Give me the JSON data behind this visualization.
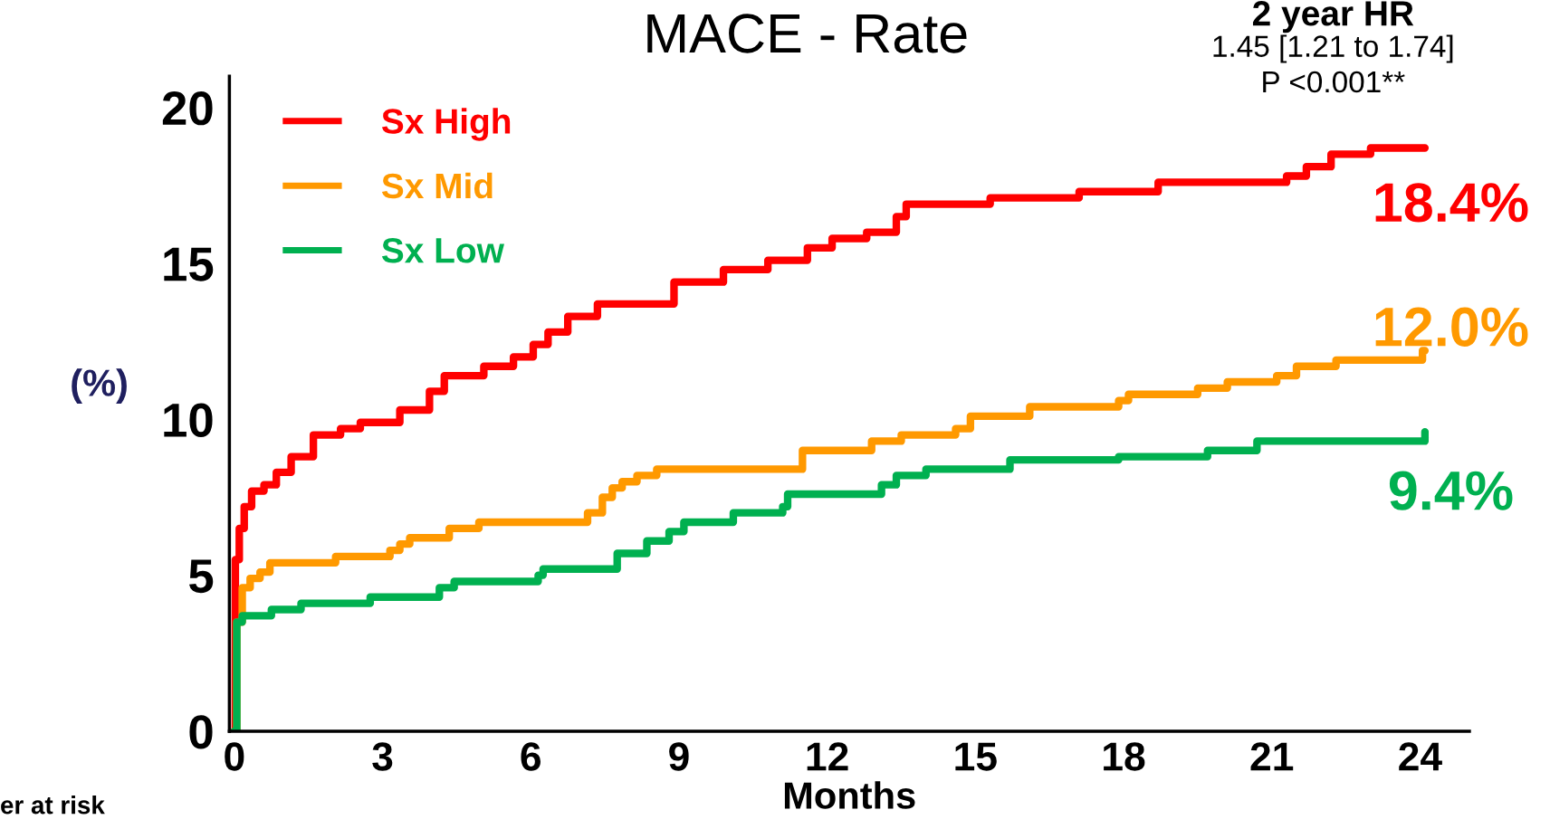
{
  "chart_data": {
    "type": "step",
    "title": "MACE - Rate",
    "xlabel": "Months",
    "ylabel": "(%)",
    "xlim": [
      -0.1,
      25
    ],
    "ylim": [
      0,
      21
    ],
    "xticks": [
      0,
      3,
      6,
      9,
      12,
      15,
      18,
      21,
      24
    ],
    "yticks": [
      0,
      5,
      10,
      15,
      20
    ],
    "grid": false,
    "legend": "top left",
    "line_style": "solid",
    "marker": "none",
    "series": [
      {
        "name": "Sx High",
        "color": "#ff0000",
        "x": [
          0,
          0.02,
          0.1,
          0.2,
          0.35,
          0.6,
          0.85,
          1.15,
          1.6,
          2.15,
          2.55,
          3.35,
          3.95,
          4.25,
          5.05,
          5.65,
          6.05,
          6.35,
          6.75,
          7.35,
          8.9,
          9.9,
          10.8,
          11.6,
          12.1,
          12.8,
          13.4,
          13.6,
          15.3,
          17.1,
          18.7,
          21.3,
          21.7,
          22.2,
          23.0,
          24.1
        ],
        "values": [
          0,
          5.5,
          6.5,
          7.2,
          7.7,
          7.9,
          8.3,
          8.8,
          9.5,
          9.7,
          9.9,
          10.3,
          10.9,
          11.4,
          11.7,
          12.0,
          12.4,
          12.8,
          13.3,
          13.7,
          14.4,
          14.8,
          15.1,
          15.5,
          15.8,
          16.0,
          16.5,
          16.9,
          17.1,
          17.3,
          17.6,
          17.8,
          18.1,
          18.5,
          18.7,
          18.7
        ]
      },
      {
        "name": "Sx Mid",
        "color": "#ff9900",
        "x": [
          0,
          0.05,
          0.16,
          0.32,
          0.52,
          0.72,
          2.05,
          3.15,
          3.35,
          3.55,
          4.35,
          4.95,
          7.15,
          7.45,
          7.65,
          7.85,
          8.15,
          8.55,
          11.5,
          12.9,
          13.5,
          14.6,
          14.9,
          16.1,
          17.9,
          18.1,
          19.5,
          20.1,
          21.1,
          21.5,
          22.3,
          24.05,
          24.1
        ],
        "values": [
          0,
          3.5,
          4.6,
          4.9,
          5.1,
          5.4,
          5.6,
          5.8,
          6.0,
          6.2,
          6.5,
          6.7,
          7.0,
          7.5,
          7.8,
          8.0,
          8.2,
          8.4,
          9.0,
          9.3,
          9.5,
          9.7,
          10.1,
          10.4,
          10.6,
          10.8,
          11.0,
          11.2,
          11.4,
          11.7,
          11.9,
          12.2,
          12.2
        ]
      },
      {
        "name": "Sx Low",
        "color": "#00b050",
        "x": [
          0,
          0.05,
          0.16,
          0.75,
          1.35,
          2.75,
          4.15,
          4.45,
          6.15,
          6.25,
          7.75,
          8.35,
          8.8,
          9.1,
          10.1,
          11.1,
          11.2,
          13.1,
          13.4,
          14.0,
          15.7,
          17.9,
          19.7,
          20.7,
          24.1
        ],
        "values": [
          0,
          3.5,
          3.7,
          3.9,
          4.1,
          4.3,
          4.6,
          4.8,
          5.0,
          5.2,
          5.7,
          6.1,
          6.4,
          6.7,
          7.0,
          7.2,
          7.6,
          7.9,
          8.2,
          8.4,
          8.7,
          8.8,
          9.0,
          9.3,
          9.6
        ]
      }
    ],
    "annotations": [
      "18.4%",
      "12.0%",
      "9.4%",
      "2 year HR",
      "1.45 [1.21 to 1.74]",
      "P <0.001**",
      "er at risk"
    ]
  }
}
